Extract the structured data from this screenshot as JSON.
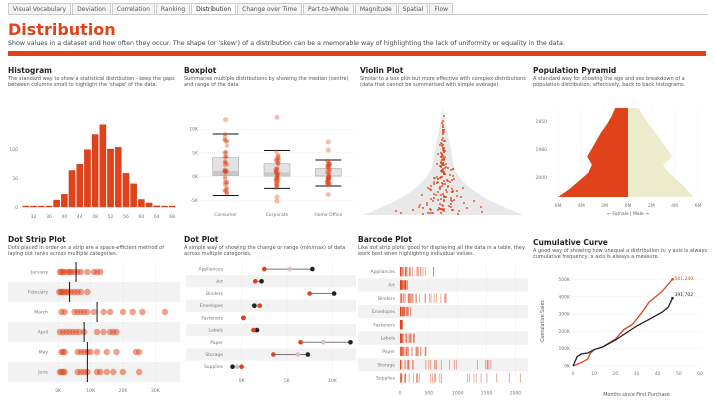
{
  "tabs": [
    "Visual Vocabulary",
    "Deviation",
    "Correlation",
    "Ranking",
    "Distribution",
    "Change over Time",
    "Part-to-Whole",
    "Magnitude",
    "Spatial",
    "Flow"
  ],
  "active_tab": "Distribution",
  "header": {
    "title": "Distribution",
    "subtitle": "Show values in a dataset and how often they occur. The shape (or 'skew') of a distribution can be a memorable way of highlighting the lack of uniformity or equality in the data."
  },
  "colors": {
    "accent": "#e0431a",
    "female": "#e0431a",
    "male": "#ecebcb",
    "dark": "#222222",
    "mid": "#d9bfc9"
  },
  "panels": {
    "histogram": {
      "title": "Histogram",
      "desc": "The standard way to show a statistical distribution - keep the gaps between columns small to highlight the 'shape' of the data."
    },
    "boxplot": {
      "title": "Boxplot",
      "desc": "Summarise multiple distributions by showing the median (centre) and range of the data"
    },
    "violin": {
      "title": "Violin Plot",
      "desc": "Similar to a box plot but more effective with complex distributions (data that cannot be summarised with simple average)."
    },
    "pyramid": {
      "title": "Population Pyramid",
      "desc": "A standard way for showing the age and sex breakdown of a population distribution; effectively, back to back histograms."
    },
    "dotstrip": {
      "title": "Dot Strip Plot",
      "desc": "Dots placed in order on a strip are a space-efficient method of laying out ranks across multiple categories."
    },
    "dotplot": {
      "title": "Dot Plot",
      "desc": "A simple way of showing the change or range (min/max) of data across multiple categories."
    },
    "barcode": {
      "title": "Barcode Plot",
      "desc": "Like dot strip plots, good for displaying all the data in a table, they work best when highlighting individual values."
    },
    "cumulative": {
      "title": "Cumulative Curve",
      "desc": "A good way of showing how unequal a distribution is: y axis is always cumulative frequency, x axis is always a measure."
    }
  },
  "chart_data": [
    {
      "id": "histogram",
      "type": "bar",
      "categories": [
        30,
        32,
        34,
        36,
        38,
        40,
        42,
        44,
        46,
        48,
        50,
        52,
        54,
        56,
        58,
        60,
        62,
        64,
        66,
        68
      ],
      "values": [
        1,
        0,
        1,
        1,
        12,
        22,
        63,
        74,
        99,
        125,
        142,
        100,
        103,
        58,
        40,
        13,
        7,
        2,
        1,
        1
      ],
      "tick_labels": [
        "32",
        "36",
        "40",
        "44",
        "48",
        "52",
        "56",
        "60",
        "64",
        "68"
      ],
      "y_ticks": [
        "0",
        "50",
        "100"
      ],
      "ylim": [
        0,
        150
      ]
    },
    {
      "id": "boxplot",
      "type": "scatter",
      "categories": [
        "Consumer",
        "Corporate",
        "Home Office"
      ],
      "y_ticks": [
        "-5K",
        "0K",
        "5K",
        "10K"
      ],
      "ylim": [
        -6,
        13
      ],
      "boxes": [
        {
          "min": -4,
          "q1": 0.2,
          "median": 1.2,
          "q3": 4,
          "max": 9
        },
        {
          "min": -2.5,
          "q1": 0.1,
          "median": 0.9,
          "q3": 2.7,
          "max": 5.5
        },
        {
          "min": -2,
          "q1": 0.1,
          "median": 0.3,
          "q3": 1.7,
          "max": 3.5
        }
      ],
      "outliers": [
        [
          12
        ],
        [
          12.5,
          -4.3,
          -5.2
        ],
        [
          7.3,
          5.6,
          -3.8
        ]
      ]
    },
    {
      "id": "violin",
      "type": "scatter",
      "note": "Dot distribution within a violin shape, widest at bottom"
    },
    {
      "id": "pyramid",
      "type": "area",
      "y_ticks": [
        "1950",
        "1980",
        "2000"
      ],
      "x_ticks": [
        "6M",
        "4M",
        "2M",
        "0M",
        "2M",
        "4M",
        "6M"
      ],
      "legend": "←  Female  |  Male  →",
      "female": [
        1.1,
        1.4,
        1.8,
        2.3,
        2.7,
        3.1,
        3.5,
        3.1,
        3.4,
        4.2,
        5.0,
        6.0
      ],
      "male": [
        0.9,
        1.3,
        1.8,
        2.3,
        2.8,
        3.3,
        3.8,
        3.0,
        3.5,
        4.3,
        5.0,
        5.6
      ]
    },
    {
      "id": "dotstrip",
      "type": "scatter",
      "categories": [
        "January",
        "February",
        "March",
        "April",
        "May",
        "June"
      ],
      "x_ticks": [
        "0K",
        "10K",
        "20K",
        "30K"
      ],
      "xlim": [
        -1,
        37
      ],
      "medians": [
        5.5,
        3.5,
        12,
        8,
        9,
        9
      ],
      "points": [
        [
          0.5,
          1,
          1.5,
          2,
          3,
          3.5,
          4,
          5,
          6,
          7,
          9,
          11,
          12,
          13
        ],
        [
          0.3,
          0.8,
          1.2,
          1.8,
          2.5,
          3,
          4,
          5,
          6,
          7,
          9
        ],
        [
          1,
          2,
          5,
          6,
          7,
          8,
          9,
          11,
          14,
          16,
          20,
          23,
          26,
          33
        ],
        [
          0.5,
          1.5,
          2.5,
          3.5,
          4.5,
          5.5,
          6.5,
          8,
          12,
          14,
          16,
          17,
          18
        ],
        [
          1,
          1.5,
          2,
          6,
          7,
          8,
          9,
          10,
          12,
          15,
          18,
          24,
          25
        ],
        [
          0.5,
          1,
          1.5,
          2,
          6,
          7,
          8,
          9,
          12,
          13,
          15,
          17,
          20,
          25
        ]
      ]
    },
    {
      "id": "dotplot",
      "type": "scatter",
      "categories": [
        "Appliances",
        "Art",
        "Binders",
        "Envelopes",
        "Fasteners",
        "Labels",
        "Paper",
        "Storage",
        "Supplies"
      ],
      "x_ticks": [
        "0K",
        "5K",
        "10K"
      ],
      "xlim": [
        -1.5,
        12.5
      ],
      "series": [
        {
          "name": "min",
          "values": [
            2.5,
            1.5,
            7.5,
            2,
            0.2,
            1.3,
            6.5,
            3.5,
            0
          ]
        },
        {
          "name": "mid",
          "values": [
            5.3,
            1.5,
            10.2,
            1.5,
            0.2,
            1.5,
            9,
            6.2,
            -0.5
          ]
        },
        {
          "name": "max",
          "values": [
            7.8,
            2.2,
            10.2,
            1.4,
            0.2,
            1.7,
            12,
            7.3,
            -1
          ]
        }
      ]
    },
    {
      "id": "barcode",
      "type": "scatter",
      "categories": [
        "Appliances",
        "Art",
        "Binders",
        "Envelopes",
        "Fasteners",
        "Labels",
        "Paper",
        "Storage",
        "Supplies"
      ],
      "x_ticks": [
        "0",
        "500",
        "1000",
        "1500",
        "2000"
      ],
      "xlim": [
        0,
        2200
      ]
    },
    {
      "id": "cumulative",
      "type": "line",
      "xlabel": "Months since First Purchase",
      "ylabel": "Cumulative Sales",
      "x_ticks": [
        "0",
        "10",
        "20",
        "30",
        "40",
        "50",
        "60"
      ],
      "y_ticks": [
        "0K",
        "100K",
        "200K",
        "300K",
        "400K",
        "500K"
      ],
      "xlim": [
        0,
        60
      ],
      "ylim": [
        0,
        520000
      ],
      "series": [
        {
          "name": "red",
          "end_label": "501,240",
          "x": [
            0,
            4,
            7,
            8,
            10,
            14,
            20,
            24,
            28,
            32,
            36,
            42,
            47
          ],
          "y": [
            0,
            20000,
            40000,
            70000,
            95000,
            110000,
            155000,
            210000,
            240000,
            300000,
            370000,
            430000,
            501240
          ]
        },
        {
          "name": "black",
          "end_label": "391,702",
          "x": [
            0,
            2,
            4,
            7,
            10,
            14,
            20,
            25,
            30,
            36,
            42,
            45,
            47
          ],
          "y": [
            0,
            55000,
            70000,
            75000,
            95000,
            110000,
            150000,
            190000,
            230000,
            270000,
            310000,
            340000,
            391702
          ]
        }
      ]
    }
  ]
}
